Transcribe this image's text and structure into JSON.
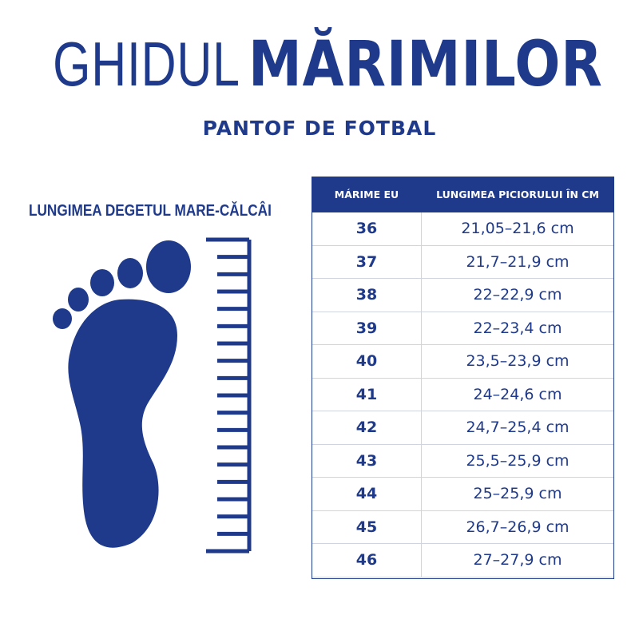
{
  "title": {
    "part1": "GHIDUL",
    "part2": "MĂRIMILOR"
  },
  "subtitle": "PANTOF DE FOTBAL",
  "foot_label": "LUNGIMEA DEGETUL MARE-CĂLCÂI",
  "colors": {
    "primary": "#1f3a8a",
    "border": "#cfd4df"
  },
  "table": {
    "headers": [
      "MÁRIME EU",
      "LUNGIMEA PICIORULUI ÎN CM"
    ],
    "rows": [
      {
        "size": "36",
        "length": "21,05–21,6 cm"
      },
      {
        "size": "37",
        "length": "21,7–21,9 cm"
      },
      {
        "size": "38",
        "length": "22–22,9 cm"
      },
      {
        "size": "39",
        "length": "22–23,4 cm"
      },
      {
        "size": "40",
        "length": "23,5–23,9 cm"
      },
      {
        "size": "41",
        "length": "24–24,6 cm"
      },
      {
        "size": "42",
        "length": "24,7–25,4 cm"
      },
      {
        "size": "43",
        "length": "25,5–25,9 cm"
      },
      {
        "size": "44",
        "length": "25–25,9 cm"
      },
      {
        "size": "45",
        "length": "26,7–26,9 cm"
      },
      {
        "size": "46",
        "length": "27–27,9 cm"
      }
    ]
  }
}
